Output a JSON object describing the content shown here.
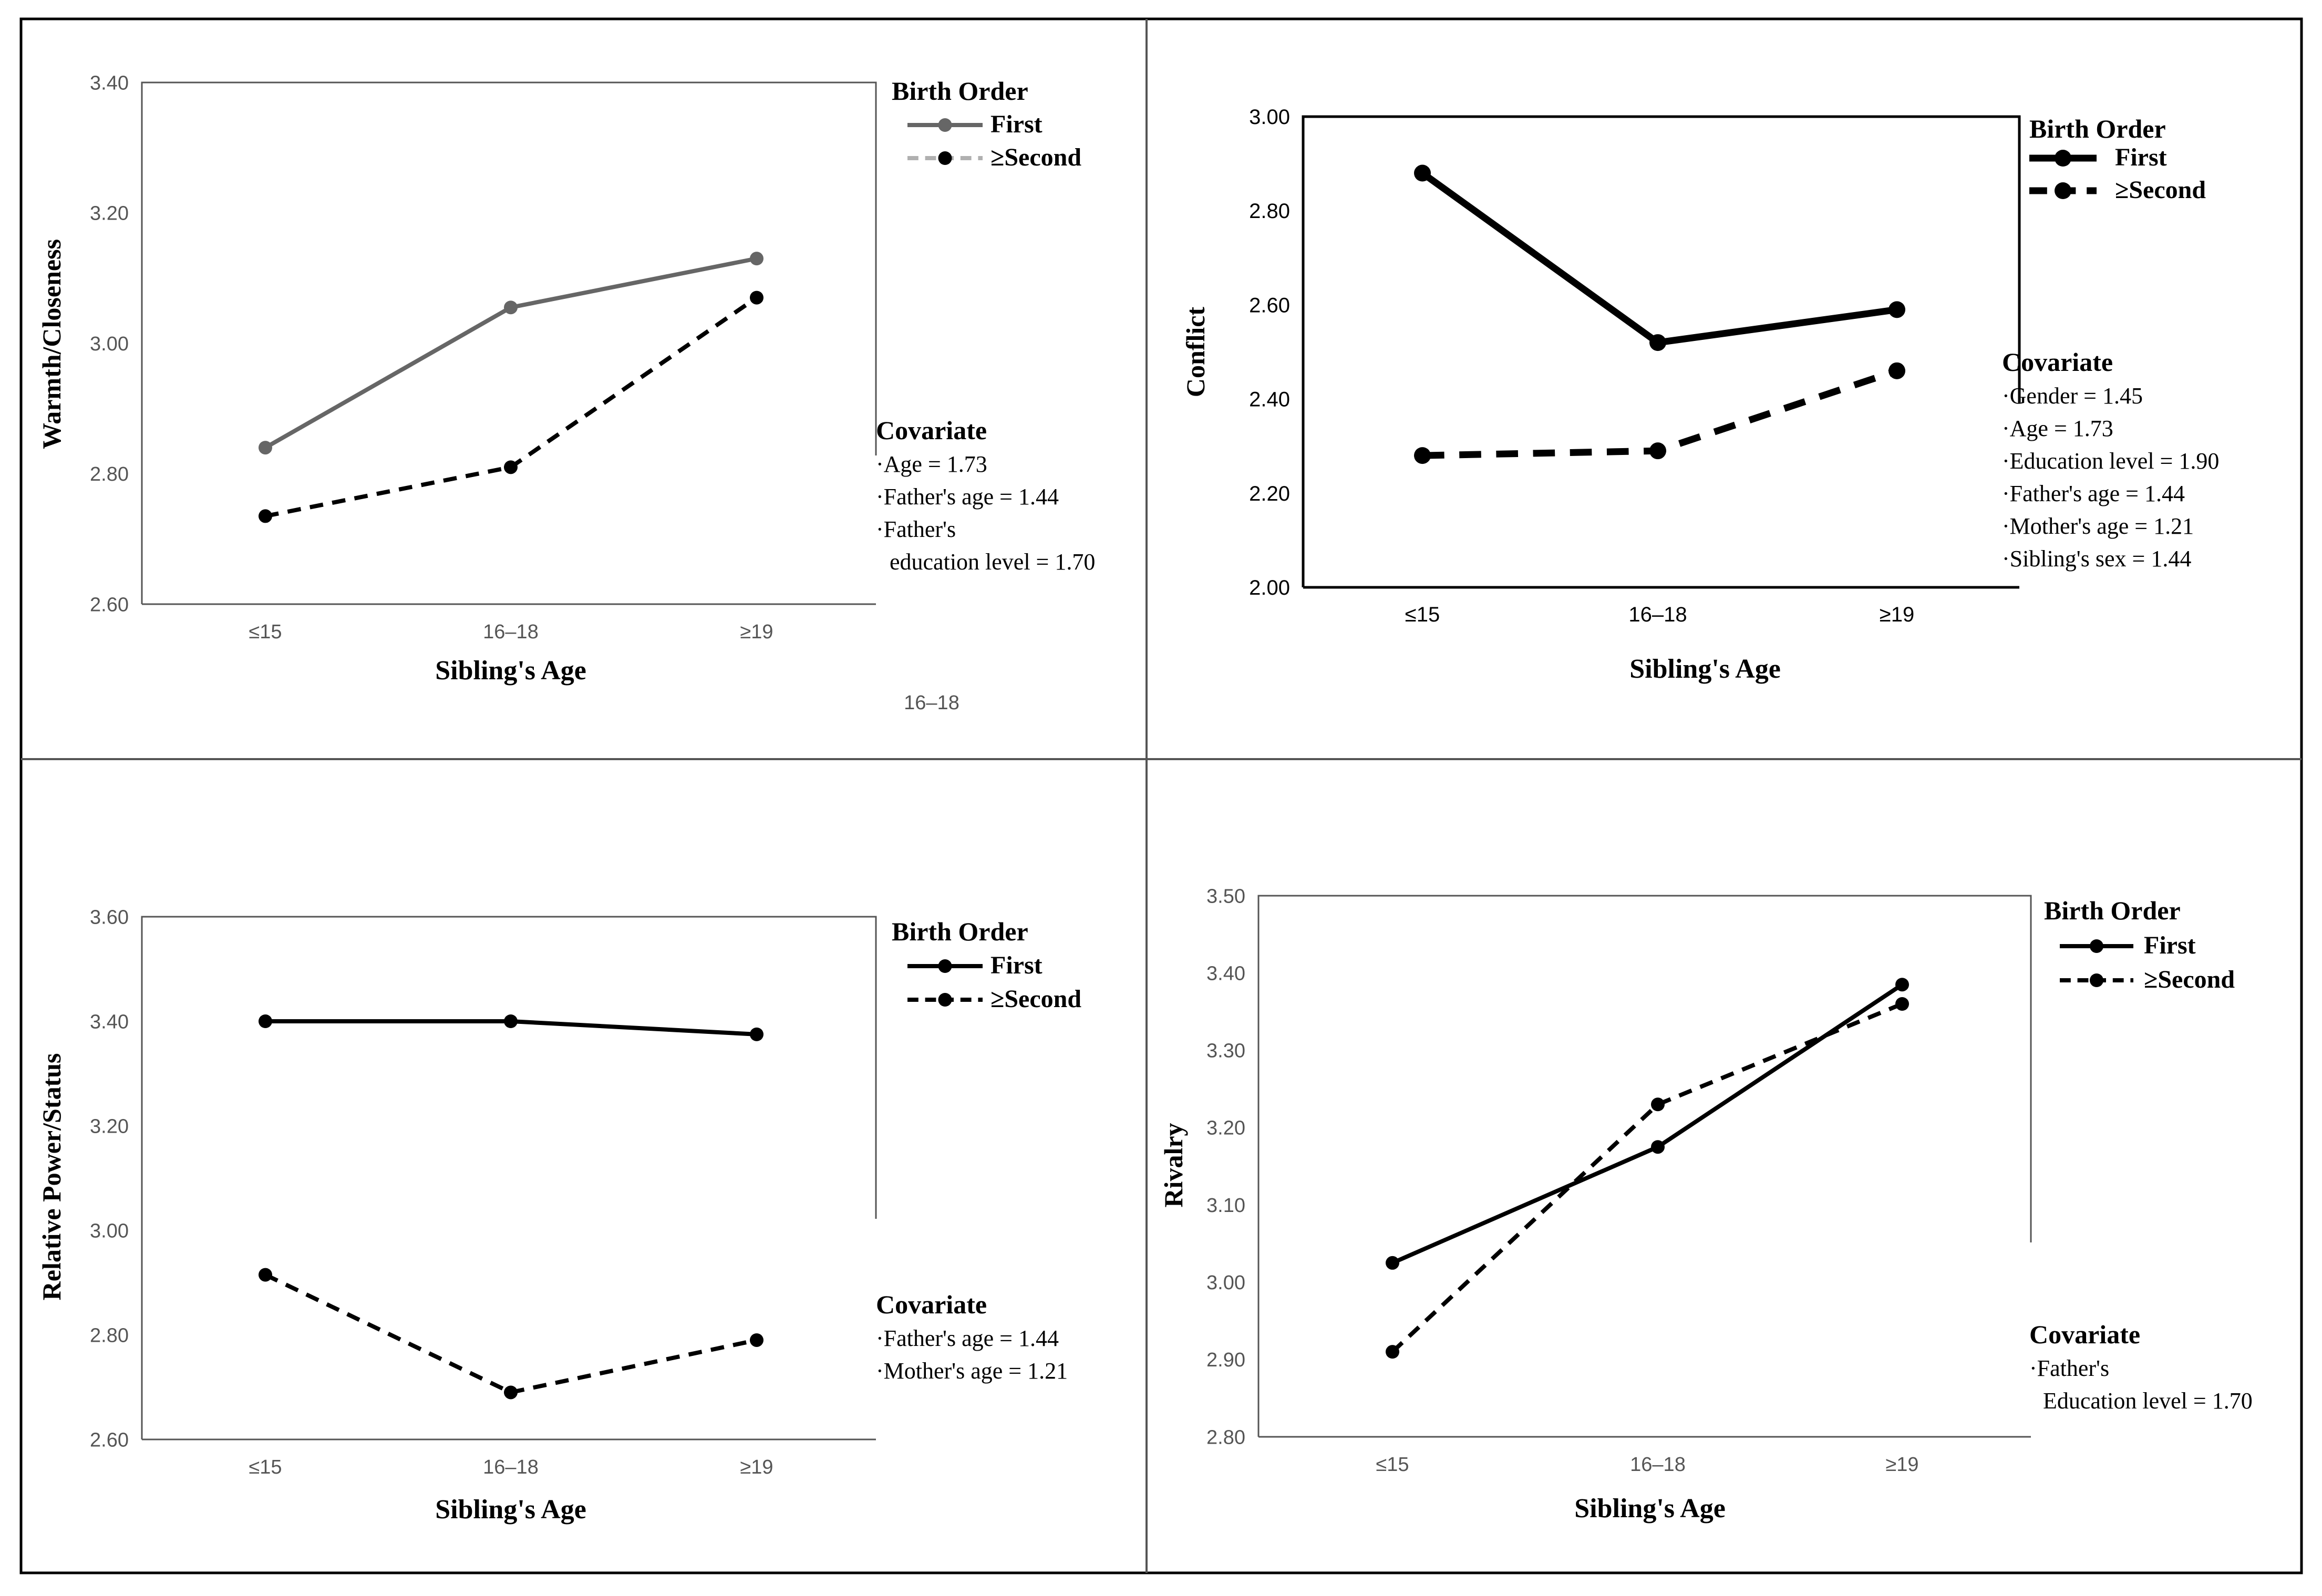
{
  "figure": {
    "stray_label": "16–18"
  },
  "chart_data": [
    {
      "type": "line",
      "panel": "top-left",
      "title": "",
      "xlabel": "Sibling's  Age",
      "ylabel": "Warmth/Closeness",
      "categories": [
        "≤15",
        "16–18",
        "≥19"
      ],
      "ylim": [
        2.6,
        3.4
      ],
      "yticks": [
        "2.60",
        "2.80",
        "3.00",
        "3.20",
        "3.40"
      ],
      "grid": false,
      "legend_title": "Birth Order",
      "series": [
        {
          "name": "First",
          "values": [
            2.84,
            3.055,
            3.13
          ],
          "color": "#666666",
          "dashed": false
        },
        {
          "name": "≥Second",
          "values": [
            2.735,
            2.81,
            3.07
          ],
          "color": "#000000",
          "legend_color": "#b0b0b0",
          "dashed": true
        }
      ],
      "covariate_title": "Covariate",
      "covariates": [
        "·Age = 1.73",
        "·Father's age = 1.44",
        "·Father's",
        "education level = 1.70"
      ]
    },
    {
      "type": "line",
      "panel": "top-right",
      "title": "",
      "xlabel": "Sibling's Age",
      "ylabel": "Conflict",
      "categories": [
        "≤15",
        "16–18",
        "≥19"
      ],
      "ylim": [
        2.0,
        3.0
      ],
      "yticks": [
        "2.00",
        "2.20",
        "2.40",
        "2.60",
        "2.80",
        "3.00"
      ],
      "grid": false,
      "legend_title": "Birth Order",
      "series": [
        {
          "name": "First",
          "values": [
            2.88,
            2.52,
            2.59
          ],
          "color": "#000000",
          "dashed": false
        },
        {
          "name": "≥Second",
          "values": [
            2.28,
            2.29,
            2.46
          ],
          "color": "#000000",
          "dashed": true
        }
      ],
      "covariate_title": "Covariate",
      "covariates": [
        "·Gender = 1.45",
        "·Age = 1.73",
        "·Education level = 1.90",
        "·Father's age = 1.44",
        "·Mother's age = 1.21",
        "·Sibling's sex = 1.44"
      ]
    },
    {
      "type": "line",
      "panel": "bottom-left",
      "title": "",
      "xlabel": "Sibling's Age",
      "ylabel": "Relative Power/Status",
      "categories": [
        "≤15",
        "16–18",
        "≥19"
      ],
      "ylim": [
        2.6,
        3.6
      ],
      "yticks": [
        "2.60",
        "2.80",
        "3.00",
        "3.20",
        "3.40",
        "3.60"
      ],
      "grid": false,
      "legend_title": "Birth Order",
      "series": [
        {
          "name": "First",
          "values": [
            3.4,
            3.4,
            3.375
          ],
          "color": "#000000",
          "dashed": false
        },
        {
          "name": "≥Second",
          "values": [
            2.915,
            2.69,
            2.79
          ],
          "color": "#000000",
          "dashed": true
        }
      ],
      "covariate_title": "Covariate",
      "covariates": [
        "·Father's age = 1.44",
        "·Mother's age = 1.21"
      ]
    },
    {
      "type": "line",
      "panel": "bottom-right",
      "title": "",
      "xlabel": "Sibling's Age",
      "ylabel": "Rivalry",
      "categories": [
        "≤15",
        "16–18",
        "≥19"
      ],
      "ylim": [
        2.8,
        3.5
      ],
      "yticks": [
        "2.80",
        "2.90",
        "3.00",
        "3.10",
        "3.20",
        "3.30",
        "3.40",
        "3.50"
      ],
      "grid": false,
      "legend_title": "Birth Order",
      "series": [
        {
          "name": "First",
          "values": [
            3.025,
            3.175,
            3.385
          ],
          "color": "#000000",
          "dashed": false
        },
        {
          "name": "≥Second",
          "values": [
            2.91,
            3.23,
            3.36
          ],
          "color": "#000000",
          "dashed": true
        }
      ],
      "covariate_title": "Covariate",
      "covariates": [
        "·Father's",
        "Education level = 1.70"
      ]
    }
  ]
}
